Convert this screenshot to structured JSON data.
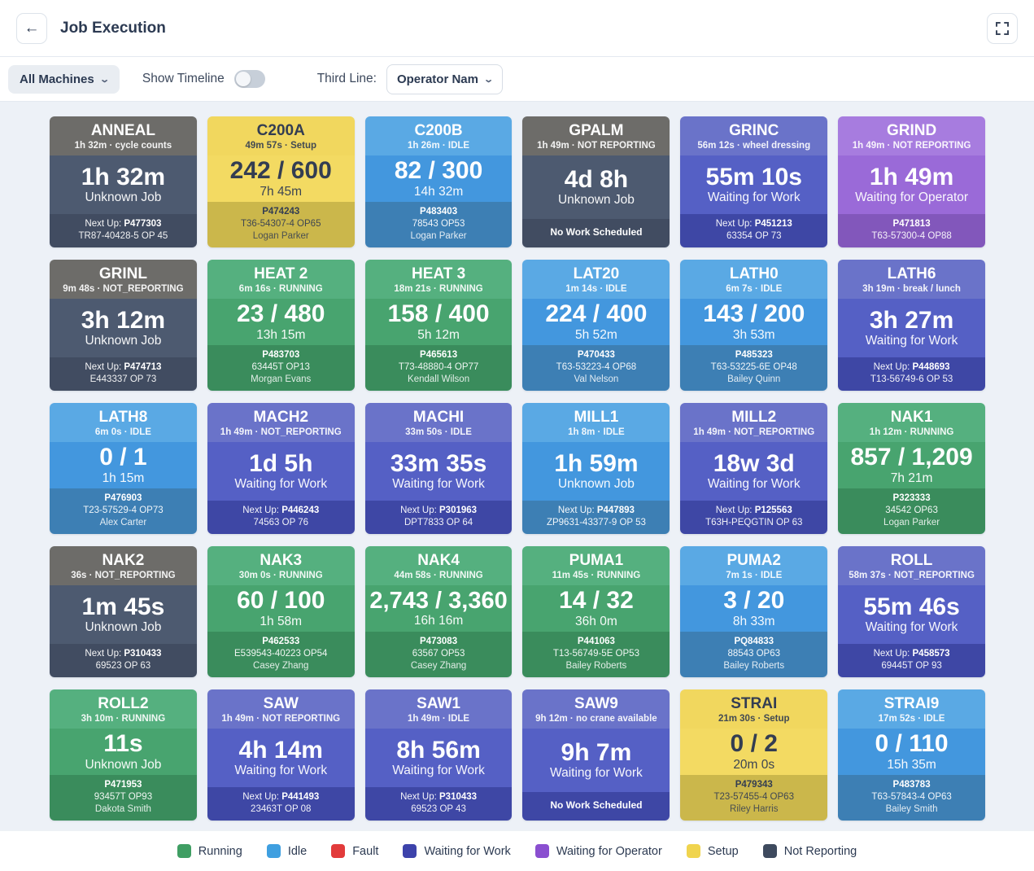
{
  "header": {
    "title": "Job Execution",
    "back_icon": "←"
  },
  "toolbar": {
    "machines_filter": "All Machines",
    "show_timeline_label": "Show Timeline",
    "timeline_enabled": false,
    "third_line_label": "Third Line:",
    "third_line_value": "Operator Nam",
    "chevron": "⌄"
  },
  "status_colors": {
    "running": {
      "header": "#55b07f",
      "body": "#48a46f",
      "footer": "#3a8c5c",
      "fg": "#ffffff"
    },
    "idle": {
      "header": "#5aa9e4",
      "body": "#4397de",
      "footer": "#3d7fb4",
      "fg": "#ffffff"
    },
    "waiting_work": {
      "header": "#6a73c9",
      "body": "#5560c5",
      "footer": "#3e47a5",
      "fg": "#ffffff"
    },
    "waiting_operator": {
      "header": "#a77cdf",
      "body": "#9a6ad8",
      "footer": "#8257bb",
      "fg": "#ffffff"
    },
    "setup": {
      "header": "#f1d75e",
      "body": "#f3da62",
      "footer": "#cbb74b",
      "fg": "#333d52"
    },
    "not_reporting": {
      "header": "#6d6c69",
      "body": "#4d5a70",
      "footer": "#414c61",
      "fg": "#ffffff"
    }
  },
  "machines": [
    {
      "name": "ANNEAL",
      "subtitle": "1h 32m · cycle counts",
      "status": "not_reporting",
      "value": "1h 32m",
      "note": "Unknown Job",
      "footer": {
        "next_up": true,
        "job": "P477303",
        "part": "TR87-40428-5 OP 45"
      }
    },
    {
      "name": "C200A",
      "subtitle": "49m 57s · Setup",
      "status": "setup",
      "value": "242 / 600",
      "note": "7h 45m",
      "footer": {
        "job": "P474243",
        "part": "T36-54307-4 OP65",
        "operator": "Logan Parker"
      }
    },
    {
      "name": "C200B",
      "subtitle": "1h 26m · IDLE",
      "status": "idle",
      "value": "82 / 300",
      "note": "14h 32m",
      "footer": {
        "job": "P483403",
        "part": "78543 OP53",
        "operator": "Logan Parker"
      }
    },
    {
      "name": "GPALM",
      "subtitle": "1h 49m · NOT REPORTING",
      "status": "not_reporting",
      "value": "4d 8h",
      "note": "Unknown Job",
      "footer": {
        "message": "No Work Scheduled"
      }
    },
    {
      "name": "GRINC",
      "subtitle": "56m 12s · wheel dressing",
      "status": "waiting_work",
      "value": "55m 10s",
      "note": "Waiting for Work",
      "footer": {
        "next_up": true,
        "job": "P451213",
        "part": "63354 OP 73"
      }
    },
    {
      "name": "GRIND",
      "subtitle": "1h 49m · NOT REPORTING",
      "status": "waiting_operator",
      "value": "1h 49m",
      "note": "Waiting for Operator",
      "footer": {
        "job": "P471813",
        "part": "T63-57300-4 OP88"
      }
    },
    {
      "name": "GRINL",
      "subtitle": "9m 48s · NOT_REPORTING",
      "status": "not_reporting",
      "value": "3h 12m",
      "note": "Unknown Job",
      "footer": {
        "next_up": true,
        "job": "P474713",
        "part": "E443337 OP 73"
      }
    },
    {
      "name": "HEAT 2",
      "subtitle": "6m 16s · RUNNING",
      "status": "running",
      "value": "23 / 480",
      "note": "13h 15m",
      "footer": {
        "job": "P483703",
        "part": "63445T OP13",
        "operator": "Morgan Evans"
      }
    },
    {
      "name": "HEAT 3",
      "subtitle": "18m 21s · RUNNING",
      "status": "running",
      "value": "158 / 400",
      "note": "5h 12m",
      "footer": {
        "job": "P465613",
        "part": "T73-48880-4 OP77",
        "operator": "Kendall Wilson"
      }
    },
    {
      "name": "LAT20",
      "subtitle": "1m 14s · IDLE",
      "status": "idle",
      "value": "224 / 400",
      "note": "5h 52m",
      "footer": {
        "job": "P470433",
        "part": "T63-53223-4 OP68",
        "operator": "Val Nelson"
      }
    },
    {
      "name": "LATH0",
      "subtitle": "6m 7s · IDLE",
      "status": "idle",
      "value": "143 / 200",
      "note": "3h 53m",
      "footer": {
        "job": "P485323",
        "part": "T63-53225-6E OP48",
        "operator": "Bailey Quinn"
      }
    },
    {
      "name": "LATH6",
      "subtitle": "3h 19m · break / lunch",
      "status": "waiting_work",
      "value": "3h 27m",
      "note": "Waiting for Work",
      "footer": {
        "next_up": true,
        "job": "P448693",
        "part": "T13-56749-6 OP 53"
      }
    },
    {
      "name": "LATH8",
      "subtitle": "6m 0s · IDLE",
      "status": "idle",
      "value": "0 / 1",
      "note": "1h 15m",
      "footer": {
        "job": "P476903",
        "part": "T23-57529-4 OP73",
        "operator": "Alex Carter"
      }
    },
    {
      "name": "MACH2",
      "subtitle": "1h 49m · NOT_REPORTING",
      "status": "waiting_work",
      "value": "1d 5h",
      "note": "Waiting for Work",
      "footer": {
        "next_up": true,
        "job": "P446243",
        "part": "74563 OP 76"
      }
    },
    {
      "name": "MACHI",
      "subtitle": "33m 50s · IDLE",
      "status": "waiting_work",
      "value": "33m 35s",
      "note": "Waiting for Work",
      "footer": {
        "next_up": true,
        "job": "P301963",
        "part": "DPT7833 OP 64"
      }
    },
    {
      "name": "MILL1",
      "subtitle": "1h 8m · IDLE",
      "status": "idle",
      "value": "1h 59m",
      "note": "Unknown Job",
      "footer": {
        "next_up": true,
        "job": "P447893",
        "part": "ZP9631-43377-9 OP 53"
      }
    },
    {
      "name": "MILL2",
      "subtitle": "1h 49m · NOT_REPORTING",
      "status": "waiting_work",
      "value": "18w 3d",
      "note": "Waiting for Work",
      "footer": {
        "next_up": true,
        "job": "P125563",
        "part": "T63H-PEQGTIN OP 63"
      }
    },
    {
      "name": "NAK1",
      "subtitle": "1h 12m · RUNNING",
      "status": "running",
      "value": "857 / 1,209",
      "note": "7h 21m",
      "footer": {
        "job": "P323333",
        "part": "34542 OP63",
        "operator": "Logan Parker"
      }
    },
    {
      "name": "NAK2",
      "subtitle": "36s · NOT_REPORTING",
      "status": "not_reporting",
      "value": "1m 45s",
      "note": "Unknown Job",
      "footer": {
        "next_up": true,
        "job": "P310433",
        "part": "69523 OP 63"
      }
    },
    {
      "name": "NAK3",
      "subtitle": "30m 0s · RUNNING",
      "status": "running",
      "value": "60 / 100",
      "note": "1h 58m",
      "footer": {
        "job": "P462533",
        "part": "E539543-40223 OP54",
        "operator": "Casey Zhang"
      }
    },
    {
      "name": "NAK4",
      "subtitle": "44m 58s · RUNNING",
      "status": "running",
      "value": "2,743 / 3,360",
      "note": "16h 16m",
      "footer": {
        "job": "P473083",
        "part": "63567 OP53",
        "operator": "Casey Zhang"
      }
    },
    {
      "name": "PUMA1",
      "subtitle": "11m 45s · RUNNING",
      "status": "running",
      "value": "14 / 32",
      "note": "36h 0m",
      "footer": {
        "job": "P441063",
        "part": "T13-56749-5E OP53",
        "operator": "Bailey Roberts"
      }
    },
    {
      "name": "PUMA2",
      "subtitle": "7m 1s · IDLE",
      "status": "idle",
      "value": "3 / 20",
      "note": "8h 33m",
      "footer": {
        "job": "PQ84833",
        "part": "88543 OP63",
        "operator": "Bailey Roberts"
      }
    },
    {
      "name": "ROLL",
      "subtitle": "58m 37s · NOT_REPORTING",
      "status": "waiting_work",
      "value": "55m 46s",
      "note": "Waiting for Work",
      "footer": {
        "next_up": true,
        "job": "P458573",
        "part": "69445T OP 93"
      }
    },
    {
      "name": "ROLL2",
      "subtitle": "3h 10m · RUNNING",
      "status": "running",
      "value": "11s",
      "note": "Unknown Job",
      "footer": {
        "job": "P471953",
        "part": "93457T OP93",
        "operator": "Dakota Smith"
      }
    },
    {
      "name": "SAW",
      "subtitle": "1h 49m · NOT REPORTING",
      "status": "waiting_work",
      "value": "4h 14m",
      "note": "Waiting for Work",
      "footer": {
        "next_up": true,
        "job": "P441493",
        "part": "23463T OP 08"
      }
    },
    {
      "name": "SAW1",
      "subtitle": "1h 49m · IDLE",
      "status": "waiting_work",
      "value": "8h 56m",
      "note": "Waiting for Work",
      "footer": {
        "next_up": true,
        "job": "P310433",
        "part": "69523 OP 43"
      }
    },
    {
      "name": "SAW9",
      "subtitle": "9h 12m · no crane available",
      "status": "waiting_work",
      "value": "9h 7m",
      "note": "Waiting for Work",
      "footer": {
        "message": "No Work Scheduled"
      }
    },
    {
      "name": "STRAI",
      "subtitle": "21m 30s · Setup",
      "status": "setup",
      "value": "0 / 2",
      "note": "20m 0s",
      "footer": {
        "job": "P479343",
        "part": "T23-57455-4 OP63",
        "operator": "Riley Harris"
      }
    },
    {
      "name": "STRAI9",
      "subtitle": "17m 52s · IDLE",
      "status": "idle",
      "value": "0 / 110",
      "note": "15h 35m",
      "footer": {
        "job": "P483783",
        "part": "T63-57843-4 OP63",
        "operator": "Bailey Smith"
      }
    }
  ],
  "legend": [
    {
      "label": "Running",
      "color": "#3f9e63"
    },
    {
      "label": "Idle",
      "color": "#3f9fe0"
    },
    {
      "label": "Fault",
      "color": "#e23b3b"
    },
    {
      "label": "Waiting for Work",
      "color": "#3d43ab"
    },
    {
      "label": "Waiting for Operator",
      "color": "#8a4fd0"
    },
    {
      "label": "Setup",
      "color": "#f0d44e"
    },
    {
      "label": "Not Reporting",
      "color": "#3e4a5e"
    }
  ],
  "footer_labels": {
    "next_up_prefix": "Next Up:"
  }
}
